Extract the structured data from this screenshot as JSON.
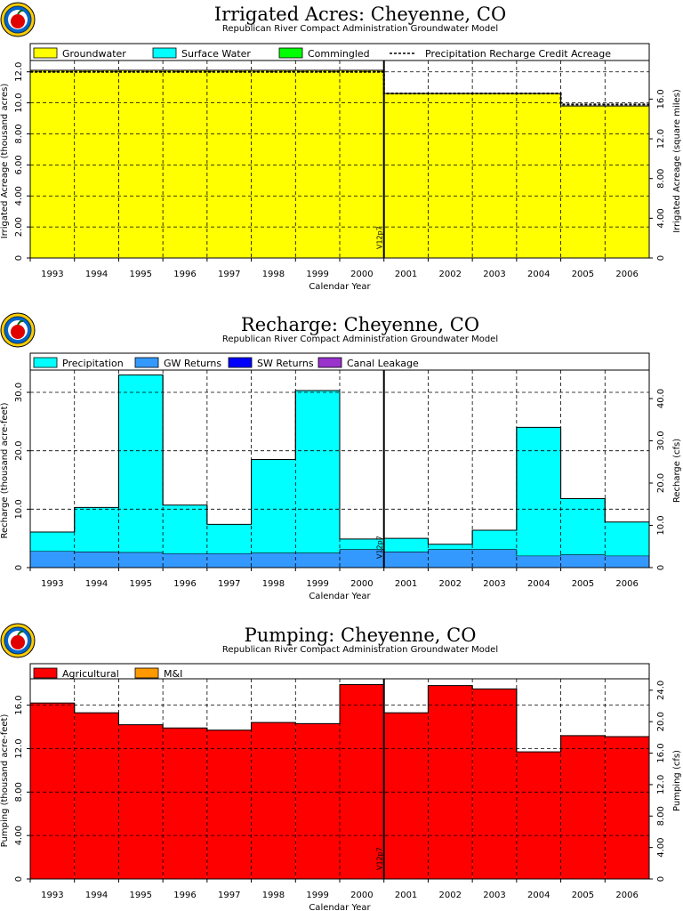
{
  "chart_data": [
    {
      "type": "area",
      "title": "Irrigated Acres: Cheyenne, CO",
      "subtitle": "Republican River Compact Administration Groundwater Model",
      "xlabel": "Calendar Year",
      "ylabel": "Irrigated Acreage (thousand acres)",
      "y2label": "Irrigated Acreage (square miles)",
      "categories": [
        "1993",
        "1994",
        "1995",
        "1996",
        "1997",
        "1998",
        "1999",
        "2000",
        "2001",
        "2002",
        "2003",
        "2004",
        "2005",
        "2006"
      ],
      "ylim": [
        0,
        12.5
      ],
      "y2lim": [
        0,
        19.53
      ],
      "yticks": [
        "0",
        "2.00",
        "4.00",
        "6.00",
        "8.00",
        "10.0",
        "12.0"
      ],
      "y2ticks": [
        "0",
        "4.00",
        "8.00",
        "12.0",
        "16.0"
      ],
      "grid": true,
      "legend_position": "top",
      "marker_label": "V12p7",
      "marker_after": "2000",
      "series": [
        {
          "name": "Groundwater",
          "color": "#ffff00",
          "values": [
            12.1,
            12.1,
            12.1,
            12.1,
            12.1,
            12.1,
            12.1,
            12.1,
            10.6,
            10.6,
            10.6,
            10.6,
            9.8,
            9.8
          ]
        },
        {
          "name": "Surface Water",
          "color": "#00ffff",
          "values": [
            0,
            0,
            0,
            0,
            0,
            0,
            0,
            0,
            0,
            0,
            0,
            0,
            0,
            0
          ]
        },
        {
          "name": "Commingled",
          "color": "#00ff00",
          "values": [
            0,
            0,
            0,
            0,
            0,
            0,
            0,
            0,
            0,
            0,
            0,
            0,
            0,
            0
          ]
        }
      ],
      "line_series": {
        "name": "Precipitation Recharge Credit Acreage",
        "values": [
          12.0,
          12.0,
          12.0,
          12.0,
          12.0,
          12.0,
          12.0,
          12.0,
          10.6,
          10.6,
          10.6,
          10.6,
          9.9,
          9.9
        ]
      }
    },
    {
      "type": "area",
      "title": "Recharge: Cheyenne, CO",
      "subtitle": "Republican River Compact Administration Groundwater Model",
      "xlabel": "Calendar Year",
      "ylabel": "Recharge (thousand acre-feet)",
      "y2label": "Recharge (cfs)",
      "categories": [
        "1993",
        "1994",
        "1995",
        "1996",
        "1997",
        "1998",
        "1999",
        "2000",
        "2001",
        "2002",
        "2003",
        "2004",
        "2005",
        "2006"
      ],
      "ylim": [
        0,
        33.2
      ],
      "y2lim": [
        0,
        45.9
      ],
      "yticks": [
        "0",
        "10.0",
        "20.0",
        "30.0"
      ],
      "y2ticks": [
        "0",
        "10.0",
        "20.0",
        "30.0",
        "40.0"
      ],
      "grid": true,
      "legend_position": "top",
      "marker_label": "V12p7",
      "marker_after": "2000",
      "series": [
        {
          "name": "GW Returns",
          "color": "#3399ff",
          "values": [
            2.8,
            2.7,
            2.6,
            2.4,
            2.4,
            2.5,
            2.5,
            3.1,
            2.7,
            3.1,
            3.1,
            2.0,
            2.2,
            2.0
          ]
        },
        {
          "name": "Precipitation",
          "color": "#00ffff",
          "values": [
            3.3,
            7.6,
            30.4,
            8.3,
            5.0,
            16.0,
            27.8,
            1.8,
            2.3,
            0.9,
            3.3,
            22.0,
            9.6,
            5.8
          ]
        },
        {
          "name": "SW Returns",
          "color": "#0000ff",
          "values": [
            0,
            0,
            0,
            0,
            0,
            0,
            0,
            0,
            0,
            0,
            0,
            0,
            0,
            0
          ]
        },
        {
          "name": "Canal Leakage",
          "color": "#9933cc",
          "values": [
            0,
            0,
            0,
            0,
            0,
            0,
            0,
            0,
            0,
            0,
            0,
            0,
            0,
            0
          ]
        }
      ]
    },
    {
      "type": "area",
      "title": "Pumping: Cheyenne, CO",
      "subtitle": "Republican River Compact Administration Groundwater Model",
      "xlabel": "Calendar Year",
      "ylabel": "Pumping (thousand acre-feet)",
      "y2label": "Pumping (cfs)",
      "categories": [
        "1993",
        "1994",
        "1995",
        "1996",
        "1997",
        "1998",
        "1999",
        "2000",
        "2001",
        "2002",
        "2003",
        "2004",
        "2005",
        "2006"
      ],
      "ylim": [
        0,
        18.1
      ],
      "y2lim": [
        0,
        25.0
      ],
      "yticks": [
        "0",
        "4.00",
        "8.00",
        "12.0",
        "16.0"
      ],
      "y2ticks": [
        "0",
        "4.00",
        "8.00",
        "12.0",
        "16.0",
        "20.0",
        "24.0"
      ],
      "grid": true,
      "legend_position": "top",
      "marker_label": "V12p7",
      "marker_after": "2000",
      "series": [
        {
          "name": "Agricultural",
          "color": "#ff0000",
          "values": [
            16.2,
            15.3,
            14.2,
            13.9,
            13.7,
            14.4,
            14.3,
            17.9,
            15.3,
            17.8,
            17.5,
            11.7,
            13.2,
            13.1
          ]
        },
        {
          "name": "M&I",
          "color": "#ff9900",
          "values": [
            0,
            0,
            0,
            0,
            0,
            0,
            0,
            0,
            0,
            0,
            0,
            0,
            0,
            0
          ]
        }
      ]
    }
  ]
}
